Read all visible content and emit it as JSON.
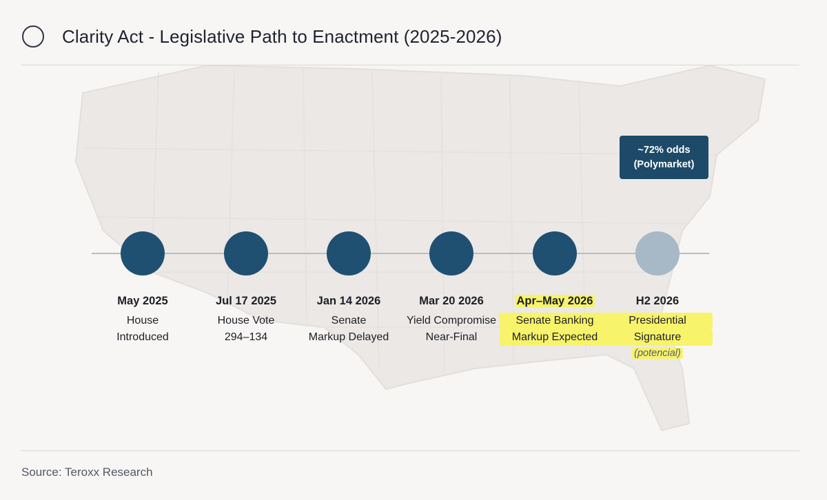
{
  "header": {
    "title": "Clarity Act - Legislative Path to Enactment (2025-2026)"
  },
  "odds_badge": {
    "line1": "~72% odds",
    "line2": "(Polymarket)"
  },
  "milestones": [
    {
      "date": "May 2025",
      "lines": [
        "House",
        "Introduced"
      ],
      "status": "complete"
    },
    {
      "date": "Jul 17 2025",
      "lines": [
        "House Vote",
        "294–134"
      ],
      "status": "complete"
    },
    {
      "date": "Jan 14 2026",
      "lines": [
        "Senate",
        "Markup Delayed"
      ],
      "status": "complete"
    },
    {
      "date": "Mar 20 2026",
      "lines": [
        "Yield Compromise",
        "Near-Final"
      ],
      "status": "complete"
    },
    {
      "date": "Apr–May 2026",
      "lines": [
        "Senate Banking",
        "Markup Expected"
      ],
      "status": "complete",
      "highlighted": true
    },
    {
      "date": "H2 2026",
      "lines": [
        "Presidential",
        "Signature"
      ],
      "note": "(potencial)",
      "status": "future",
      "highlighted": true
    }
  ],
  "colors": {
    "node_complete": "#1f5072",
    "node_future": "#a7b8c6",
    "highlight": "#f7f36a",
    "badge": "#1d4a69"
  },
  "footer": {
    "source": "Source: Teroxx Research"
  }
}
